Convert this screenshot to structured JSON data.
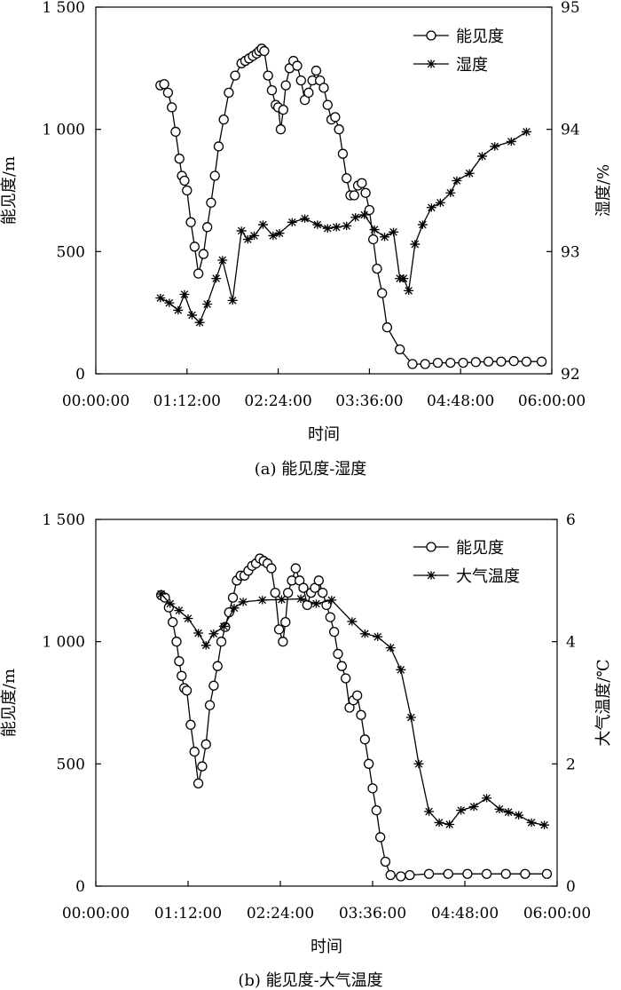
{
  "chart_data": [
    {
      "type": "line",
      "title": "(a) 能见度-湿度",
      "xlabel": "时间",
      "ylabel": "能见度/m",
      "y2label": "湿度/%",
      "x_ticks": [
        "00:00:00",
        "01:12:00",
        "02:24:00",
        "03:36:00",
        "04:48:00",
        "06:00:00"
      ],
      "xlim": [
        0,
        360
      ],
      "ylim": [
        0,
        1500
      ],
      "y_ticks": [
        "0",
        "500",
        "1 000",
        "1 500"
      ],
      "y2lim": [
        92,
        95
      ],
      "y2_ticks": [
        "92",
        "93",
        "94",
        "95"
      ],
      "legend_position": "top-right",
      "series": [
        {
          "name": "能见度",
          "axis": "left",
          "marker": "circle",
          "x": [
            51,
            54,
            57,
            60,
            63,
            66,
            68,
            70,
            72,
            75,
            78,
            81,
            85,
            88,
            91,
            94,
            97,
            101,
            105,
            110,
            115,
            118,
            121,
            124,
            127,
            129,
            131,
            133,
            136,
            139,
            142,
            144,
            146,
            148,
            150,
            153,
            156,
            159,
            162,
            165,
            168,
            171,
            174,
            177,
            180,
            183,
            186,
            189,
            192,
            195,
            198,
            201,
            204,
            207,
            210,
            213,
            216,
            219,
            222,
            226,
            230,
            240,
            250,
            260,
            270,
            280,
            290,
            300,
            310,
            320,
            330,
            340,
            352
          ],
          "y": [
            1180,
            1185,
            1150,
            1090,
            990,
            880,
            810,
            790,
            750,
            620,
            520,
            410,
            490,
            600,
            700,
            810,
            930,
            1040,
            1150,
            1220,
            1270,
            1280,
            1290,
            1300,
            1310,
            1320,
            1330,
            1320,
            1220,
            1160,
            1100,
            1090,
            1000,
            1080,
            1180,
            1250,
            1280,
            1260,
            1200,
            1120,
            1150,
            1200,
            1240,
            1200,
            1170,
            1100,
            1040,
            1050,
            1000,
            900,
            800,
            730,
            730,
            770,
            780,
            740,
            670,
            550,
            430,
            330,
            190,
            100,
            40,
            40,
            45,
            45,
            45,
            48,
            50,
            50,
            52,
            50,
            50
          ]
        },
        {
          "name": "湿度",
          "axis": "right",
          "marker": "asterisk",
          "x": [
            51,
            58,
            65,
            70,
            76,
            82,
            88,
            95,
            100,
            108,
            115,
            120,
            125,
            132,
            140,
            145,
            155,
            165,
            175,
            183,
            190,
            198,
            205,
            212,
            220,
            228,
            235,
            240,
            243,
            247,
            252,
            258,
            265,
            272,
            280,
            285,
            295,
            305,
            315,
            328,
            340
          ],
          "y": [
            92.62,
            92.58,
            92.52,
            92.65,
            92.48,
            92.42,
            92.57,
            92.78,
            92.93,
            92.6,
            93.17,
            93.1,
            93.13,
            93.22,
            93.13,
            93.15,
            93.24,
            93.27,
            93.22,
            93.19,
            93.2,
            93.21,
            93.28,
            93.3,
            93.18,
            93.12,
            93.16,
            92.78,
            92.78,
            92.68,
            93.06,
            93.22,
            93.36,
            93.4,
            93.48,
            93.58,
            93.64,
            93.78,
            93.86,
            93.9,
            93.98
          ]
        }
      ]
    },
    {
      "type": "line",
      "title": "(b) 能见度-大气温度",
      "xlabel": "时间",
      "ylabel": "能见度/m",
      "y2label": "大气温度/℃",
      "x_ticks": [
        "00:00:00",
        "01:12:00",
        "02:24:00",
        "03:36:00",
        "04:48:00",
        "06:00:00"
      ],
      "xlim": [
        0,
        360
      ],
      "ylim": [
        0,
        1500
      ],
      "y_ticks": [
        "0",
        "500",
        "1 000",
        "1 500"
      ],
      "y2lim": [
        0,
        6
      ],
      "y2_ticks": [
        "0",
        "2",
        "4",
        "6"
      ],
      "legend_position": "top-right",
      "series": [
        {
          "name": "能见度",
          "axis": "left",
          "marker": "circle",
          "x": [
            51,
            54,
            57,
            60,
            63,
            65,
            67,
            69,
            71,
            74,
            77,
            80,
            83,
            86,
            89,
            92,
            95,
            98,
            101,
            104,
            107,
            110,
            113,
            116,
            119,
            122,
            125,
            128,
            131,
            134,
            137,
            140,
            143,
            146,
            148,
            150,
            153,
            156,
            159,
            162,
            165,
            168,
            171,
            174,
            177,
            180,
            183,
            186,
            189,
            192,
            195,
            198,
            201,
            204,
            207,
            210,
            213,
            216,
            219,
            222,
            226,
            230,
            238,
            245,
            260,
            275,
            290,
            305,
            320,
            335,
            352
          ],
          "y": [
            1190,
            1180,
            1140,
            1080,
            1000,
            920,
            860,
            810,
            800,
            660,
            550,
            420,
            490,
            580,
            740,
            820,
            900,
            1000,
            1060,
            1120,
            1180,
            1250,
            1270,
            1270,
            1290,
            1310,
            1320,
            1340,
            1330,
            1320,
            1300,
            1200,
            1050,
            1000,
            1080,
            1200,
            1250,
            1300,
            1250,
            1220,
            1150,
            1200,
            1220,
            1250,
            1200,
            1150,
            1100,
            1040,
            950,
            900,
            850,
            730,
            760,
            780,
            700,
            600,
            500,
            400,
            310,
            200,
            100,
            45,
            40,
            45,
            50,
            50,
            50,
            50,
            50,
            50,
            50
          ]
        },
        {
          "name": "大气温度",
          "axis": "right",
          "marker": "asterisk",
          "x": [
            51,
            58,
            65,
            72,
            80,
            86,
            92,
            100,
            108,
            115,
            130,
            145,
            160,
            172,
            184,
            200,
            210,
            220,
            230,
            238,
            246,
            252,
            260,
            268,
            276,
            285,
            295,
            305,
            315,
            322,
            330,
            340,
            350
          ],
          "y": [
            4.78,
            4.62,
            4.51,
            4.38,
            4.14,
            3.94,
            4.13,
            4.25,
            4.55,
            4.65,
            4.68,
            4.69,
            4.7,
            4.62,
            4.68,
            4.33,
            4.13,
            4.08,
            3.9,
            3.54,
            2.76,
            2.0,
            1.22,
            1.04,
            1.01,
            1.24,
            1.3,
            1.44,
            1.26,
            1.21,
            1.16,
            1.04,
            1.0
          ]
        }
      ]
    }
  ]
}
